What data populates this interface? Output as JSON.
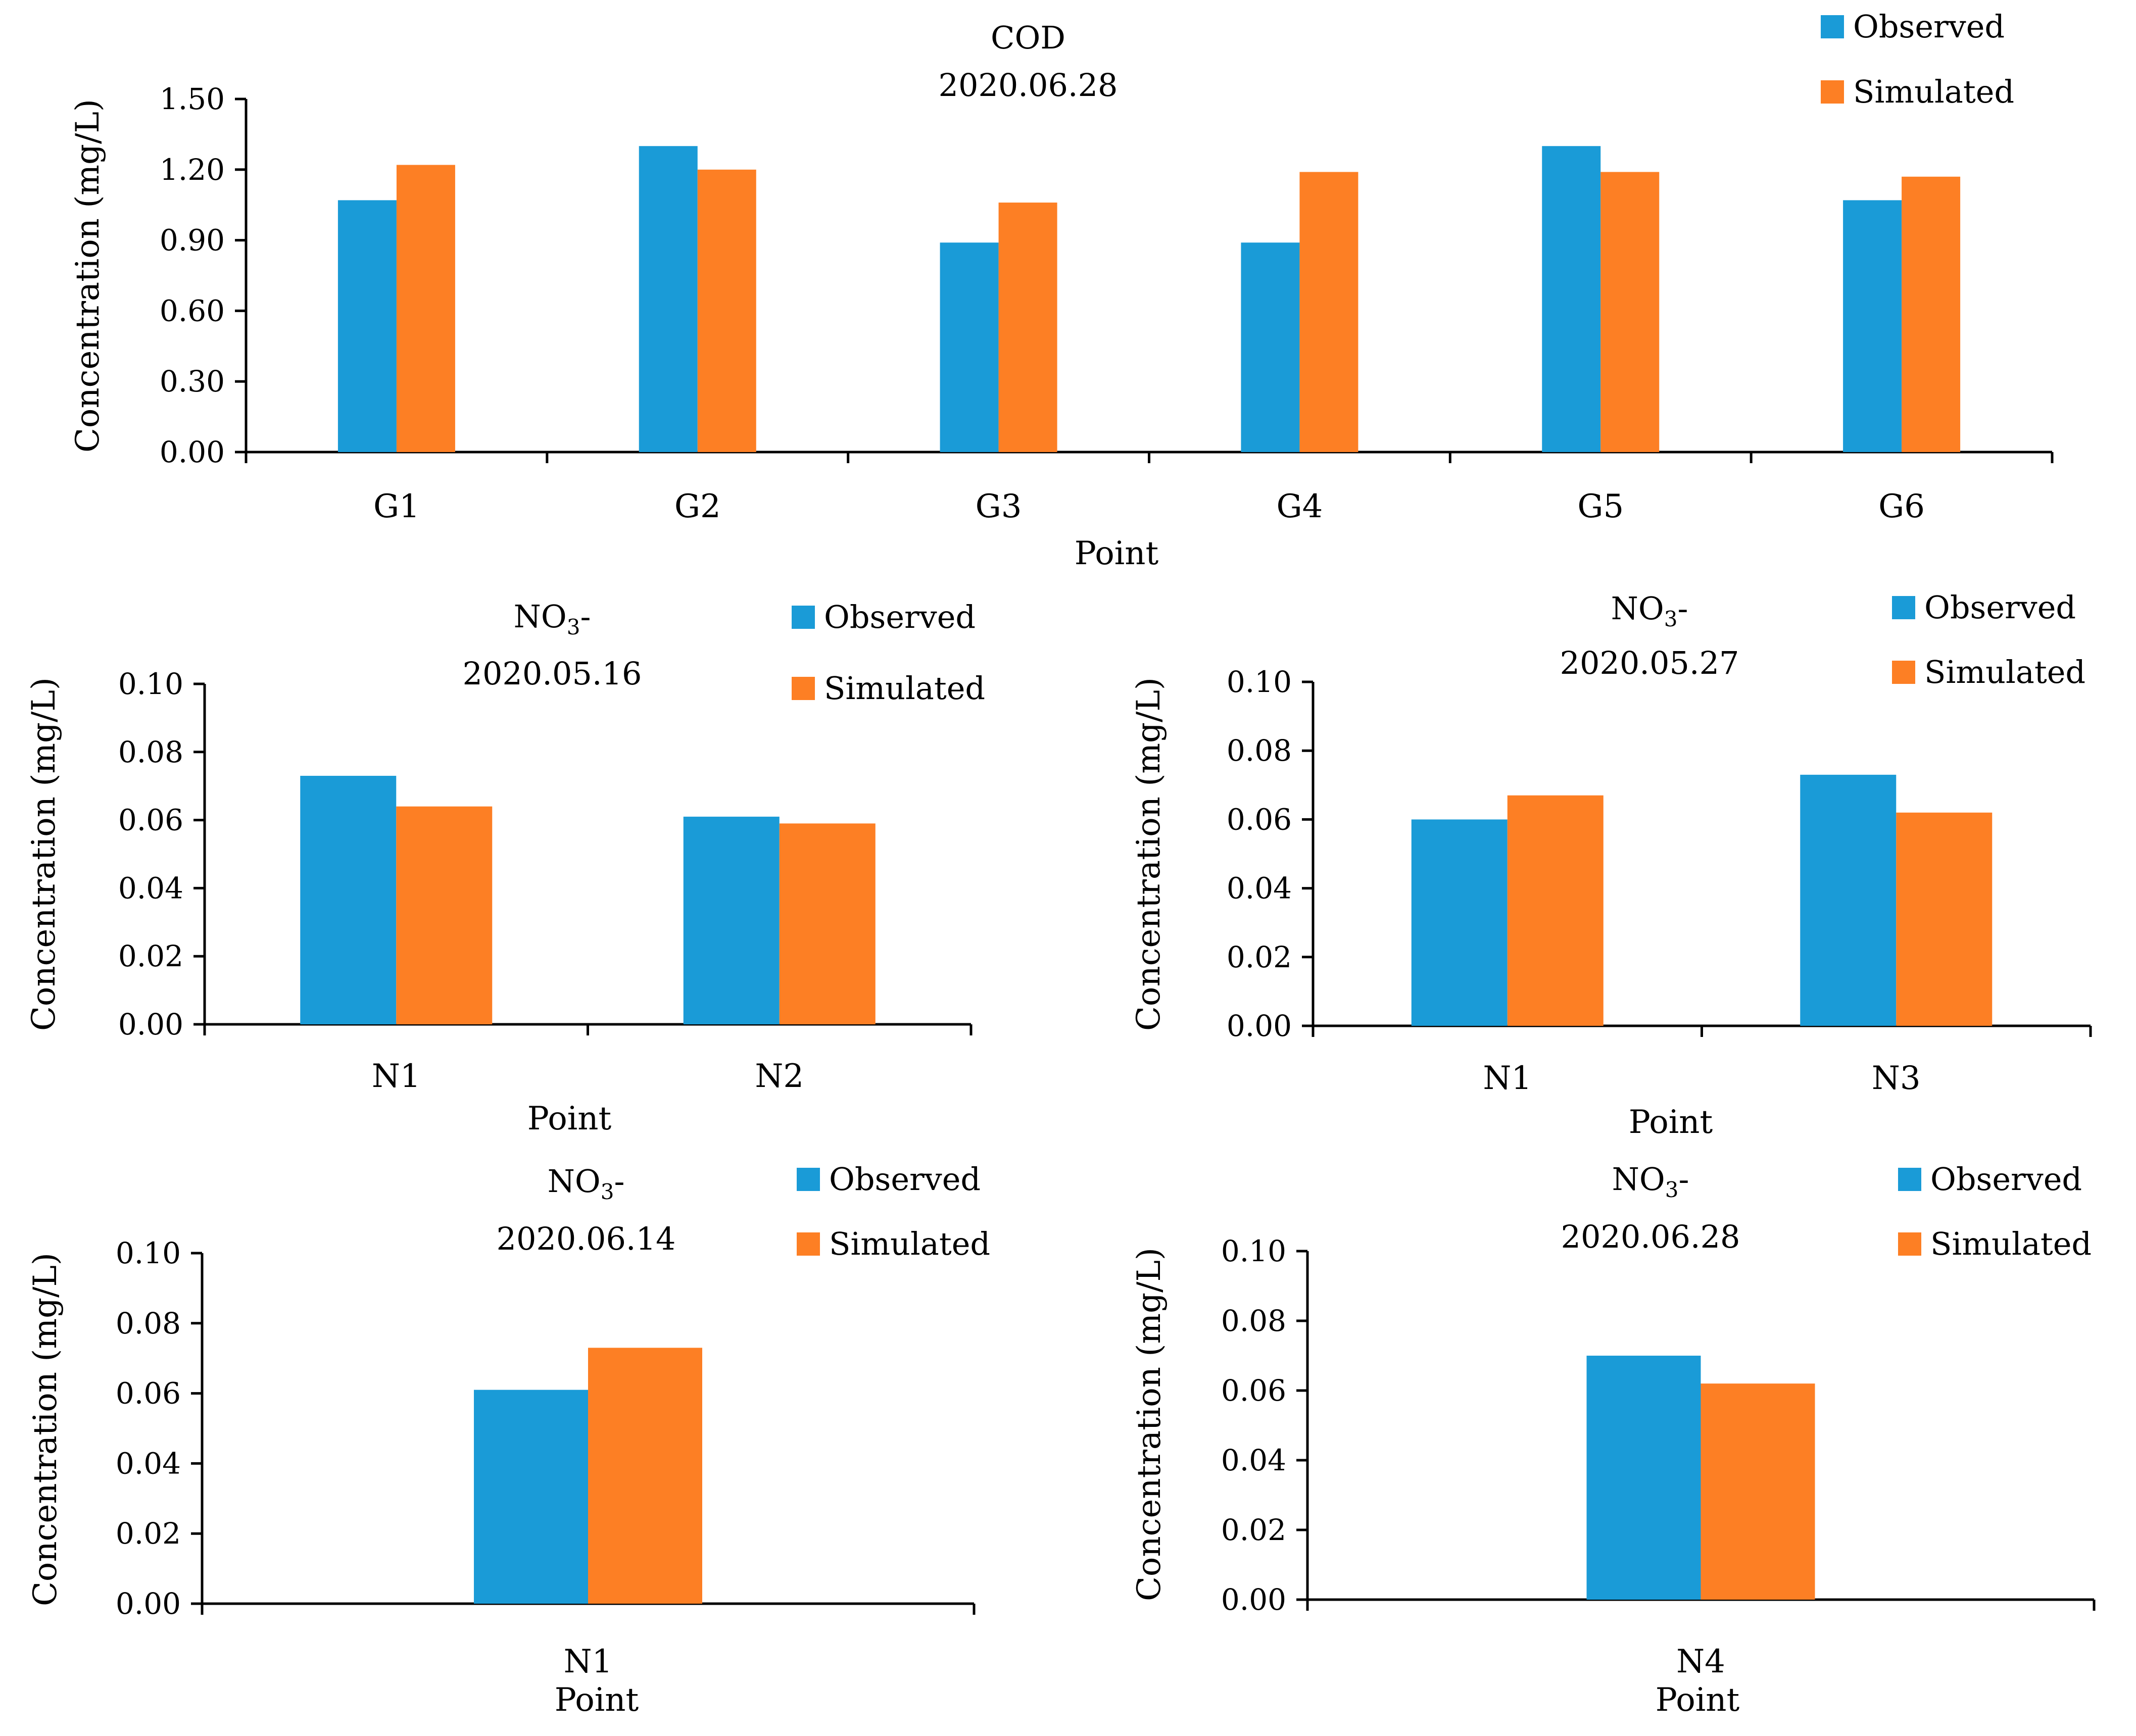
{
  "colors": {
    "observed": "#1a9bd7",
    "simulated": "#fd7f24",
    "axis": "#000000"
  },
  "chart_data": [
    {
      "type": "bar",
      "title": "COD",
      "subtitle": "2020.06.28",
      "xlabel": "Point",
      "ylabel": "Concentration (mg/L)",
      "ylim": [
        0,
        1.5
      ],
      "yticks": [
        "0.00",
        "0.30",
        "0.60",
        "0.90",
        "1.20",
        "1.50"
      ],
      "categories": [
        "G1",
        "G2",
        "G3",
        "G4",
        "G5",
        "G6"
      ],
      "series": [
        {
          "name": "Observed",
          "values": [
            1.07,
            1.3,
            0.89,
            0.89,
            1.3,
            1.07
          ]
        },
        {
          "name": "Simulated",
          "values": [
            1.22,
            1.2,
            1.06,
            1.19,
            1.19,
            1.17
          ]
        }
      ],
      "legend": "top-right"
    },
    {
      "type": "bar",
      "title": "NO",
      "title_sub": "3",
      "title_suffix": "-",
      "subtitle": "2020.05.16",
      "xlabel": "Point",
      "ylabel": "Concentration (mg/L)",
      "ylim": [
        0,
        0.1
      ],
      "yticks": [
        "0.00",
        "0.02",
        "0.04",
        "0.06",
        "0.08",
        "0.10"
      ],
      "categories": [
        "N1",
        "N2"
      ],
      "series": [
        {
          "name": "Observed",
          "values": [
            0.073,
            0.061
          ]
        },
        {
          "name": "Simulated",
          "values": [
            0.064,
            0.059
          ]
        }
      ],
      "legend": "top-right"
    },
    {
      "type": "bar",
      "title": "NO",
      "title_sub": "3",
      "title_suffix": "-",
      "subtitle": "2020.05.27",
      "xlabel": "Point",
      "ylabel": "Concentration (mg/L)",
      "ylim": [
        0,
        0.1
      ],
      "yticks": [
        "0.00",
        "0.02",
        "0.04",
        "0.06",
        "0.08",
        "0.10"
      ],
      "categories": [
        "N1",
        "N3"
      ],
      "series": [
        {
          "name": "Observed",
          "values": [
            0.06,
            0.073
          ]
        },
        {
          "name": "Simulated",
          "values": [
            0.067,
            0.062
          ]
        }
      ],
      "legend": "top-right"
    },
    {
      "type": "bar",
      "title": "NO",
      "title_sub": "3",
      "title_suffix": "-",
      "subtitle": "2020.06.14",
      "xlabel": "Point",
      "ylabel": "Concentration (mg/L)",
      "ylim": [
        0,
        0.1
      ],
      "yticks": [
        "0.00",
        "0.02",
        "0.04",
        "0.06",
        "0.08",
        "0.10"
      ],
      "categories": [
        "N1"
      ],
      "series": [
        {
          "name": "Observed",
          "values": [
            0.061
          ]
        },
        {
          "name": "Simulated",
          "values": [
            0.073
          ]
        }
      ],
      "legend": "top-right"
    },
    {
      "type": "bar",
      "title": "NO",
      "title_sub": "3",
      "title_suffix": "-",
      "subtitle": "2020.06.28",
      "xlabel": "Point",
      "ylabel": "Concentration (mg/L)",
      "ylim": [
        0,
        0.1
      ],
      "yticks": [
        "0.00",
        "0.02",
        "0.04",
        "0.06",
        "0.08",
        "0.10"
      ],
      "categories": [
        "N4"
      ],
      "series": [
        {
          "name": "Observed",
          "values": [
            0.07
          ]
        },
        {
          "name": "Simulated",
          "values": [
            0.062
          ]
        }
      ],
      "legend": "top-right"
    }
  ]
}
